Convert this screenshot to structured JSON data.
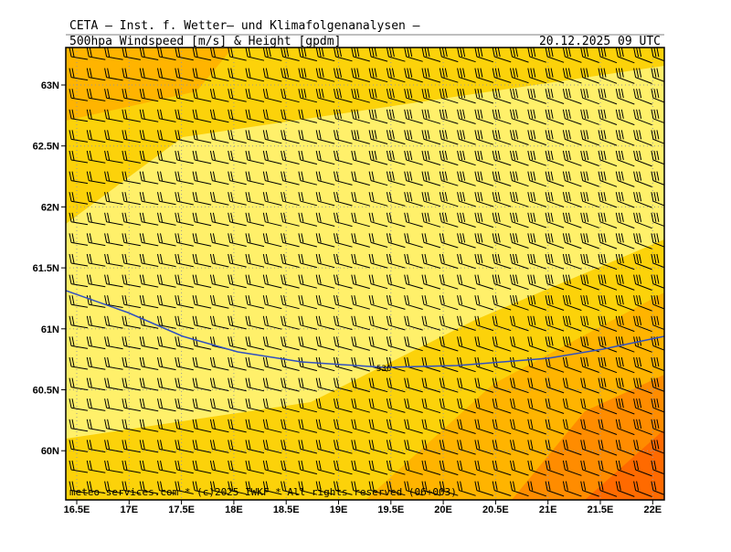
{
  "header": {
    "title": "CETA — Inst. f. Wetter— und Klimafolgenanalysen —",
    "subtitle": "500hpa Windspeed [m/s] & Height [gpdm]",
    "timestamp": "20.12.2025 09 UTC"
  },
  "axes": {
    "lat_labels": [
      "63N",
      "62.5N",
      "62N",
      "61.5N",
      "61N",
      "60.5N",
      "60N"
    ],
    "lon_labels": [
      "16.5E",
      "17E",
      "17.5E",
      "18E",
      "18.5E",
      "19E",
      "19.5E",
      "20E",
      "20.5E",
      "21E",
      "21.5E",
      "22E"
    ]
  },
  "contour": {
    "label": "536"
  },
  "footer": {
    "credit": "meteo-services.com * (c)2025 IWKF * All rights reserved (06+003)"
  }
}
